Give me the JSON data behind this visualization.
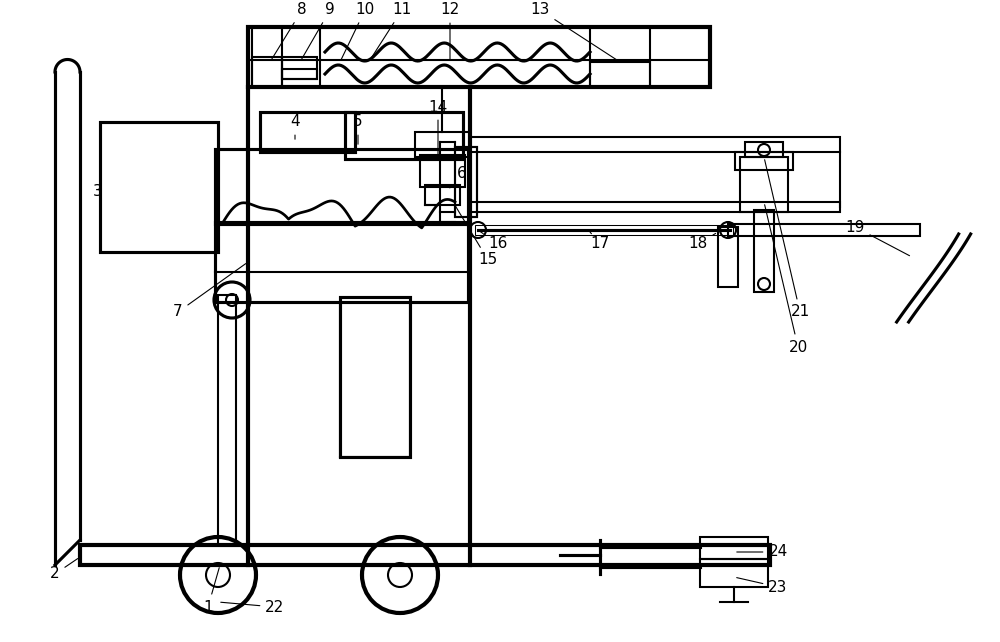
{
  "bg_color": "#ffffff",
  "line_color": "#000000",
  "line_width": 1.5
}
